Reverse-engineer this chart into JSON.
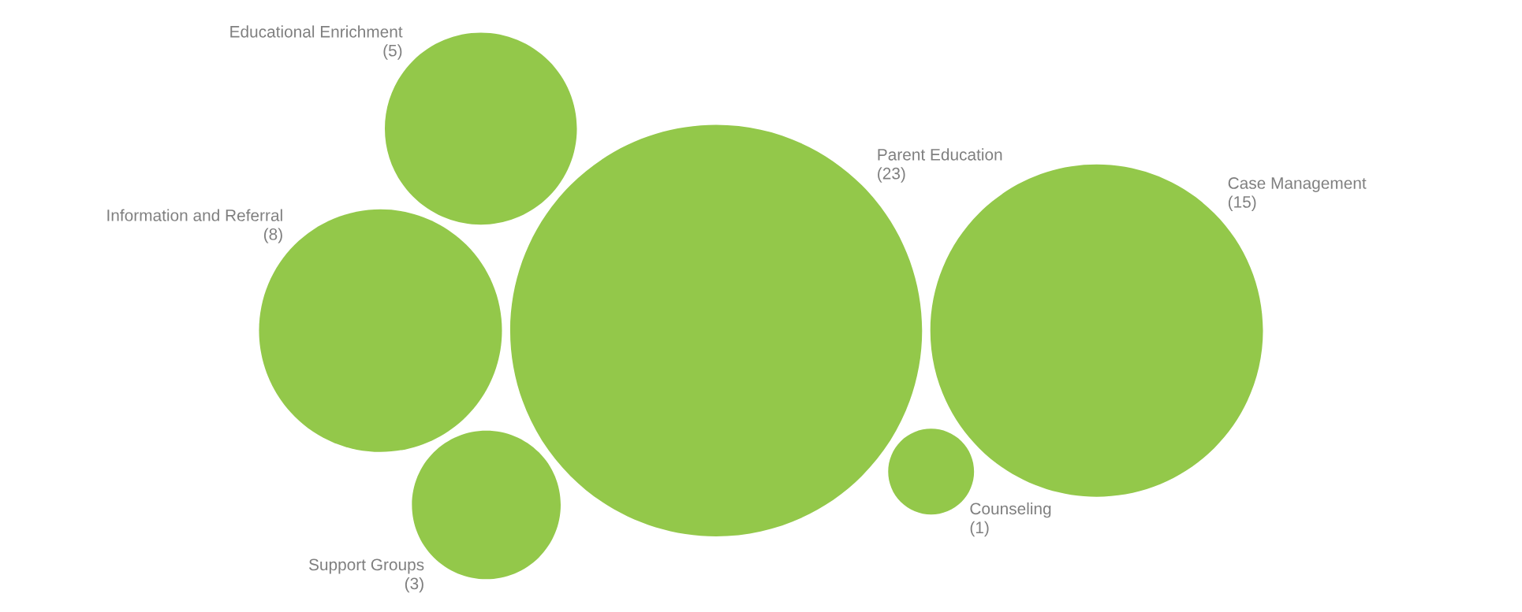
{
  "chart_data": {
    "type": "other",
    "categories": [
      "Case Management",
      "Counseling",
      "Support Groups",
      "Information and Referral",
      "Educational Enrichment",
      "Parent Education"
    ],
    "values": [
      15,
      1,
      3,
      8,
      5,
      23
    ],
    "color": "#93c84a",
    "value_labels": [
      "(15)",
      "(1)",
      "(3)",
      "(8)",
      "(5)",
      "(23)"
    ]
  }
}
